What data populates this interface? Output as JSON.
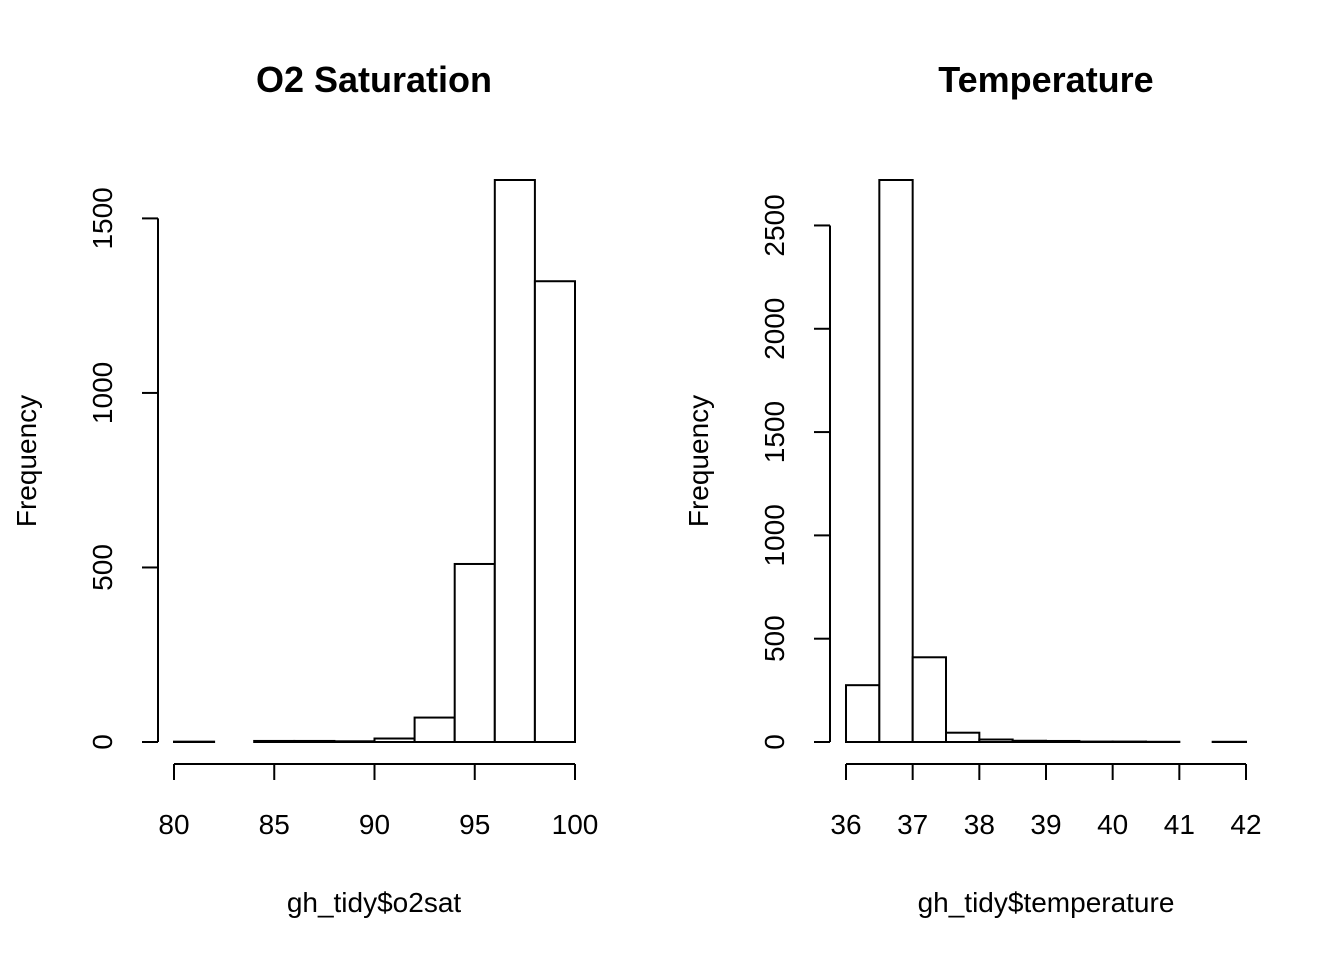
{
  "chart_data": [
    {
      "type": "bar",
      "subtype": "histogram",
      "title": "O2 Saturation",
      "xlabel": "gh_tidy$o2sat",
      "ylabel": "Frequency",
      "bin_edges": [
        80,
        82,
        84,
        86,
        88,
        90,
        92,
        94,
        96,
        98,
        100
      ],
      "values": [
        1,
        0,
        3,
        3,
        2,
        10,
        70,
        510,
        1610,
        1320
      ],
      "xlim": [
        80,
        100
      ],
      "ylim": [
        0,
        1610
      ],
      "x_ticks": [
        80,
        85,
        90,
        95,
        100
      ],
      "x_tick_labels": [
        "80",
        "85",
        "90",
        "95",
        "100"
      ],
      "y_ticks": [
        0,
        500,
        1000,
        1500
      ],
      "y_tick_labels": [
        "0",
        "500",
        "1000",
        "1500"
      ],
      "grid": false,
      "legend": "none"
    },
    {
      "type": "bar",
      "subtype": "histogram",
      "title": "Temperature",
      "xlabel": "gh_tidy$temperature",
      "ylabel": "Frequency",
      "bin_edges": [
        36,
        36.5,
        37,
        37.5,
        38,
        38.5,
        39,
        39.5,
        40,
        40.5,
        41,
        41.5,
        42
      ],
      "values": [
        275,
        2720,
        410,
        45,
        12,
        6,
        5,
        2,
        2,
        1,
        0,
        1
      ],
      "xlim": [
        36,
        42
      ],
      "ylim": [
        0,
        2720
      ],
      "x_ticks": [
        36,
        37,
        38,
        39,
        40,
        41,
        42
      ],
      "x_tick_labels": [
        "36",
        "37",
        "38",
        "39",
        "40",
        "41",
        "42"
      ],
      "y_ticks": [
        0,
        500,
        1000,
        1500,
        2000,
        2500
      ],
      "y_tick_labels": [
        "0",
        "500",
        "1000",
        "1500",
        "2000",
        "2500"
      ],
      "grid": false,
      "legend": "none"
    }
  ]
}
